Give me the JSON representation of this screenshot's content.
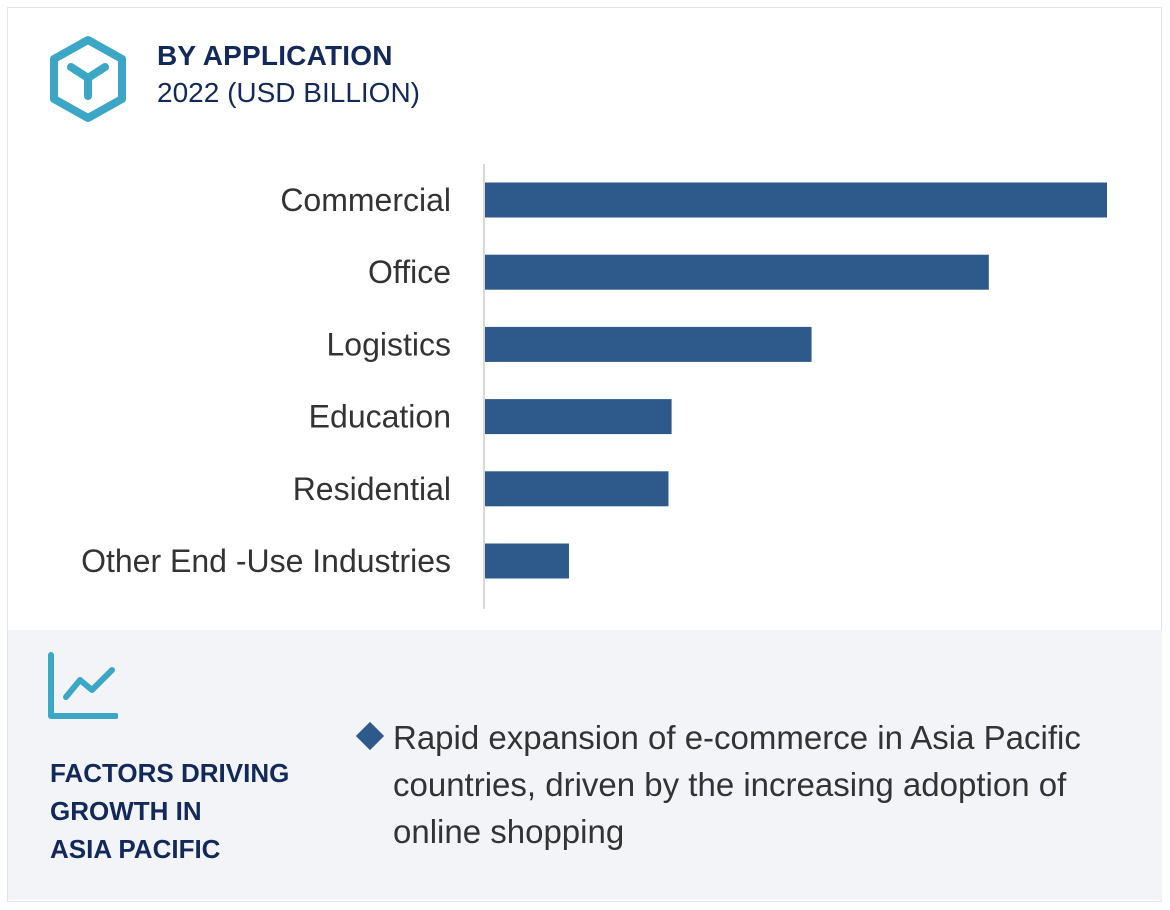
{
  "header": {
    "title": "BY APPLICATION",
    "subtitle": "2022 (USD BILLION)",
    "icon": "cube-icon",
    "icon_color": "#3ba6c6"
  },
  "chart_data": {
    "type": "bar",
    "orientation": "horizontal",
    "categories": [
      "Commercial",
      "Office",
      "Logistics",
      "Education",
      "Residential",
      "Other End -Use Industries"
    ],
    "values": [
      100,
      81,
      52.5,
      30,
      29.5,
      13.5
    ],
    "xlim": [
      0,
      100
    ],
    "title": "",
    "xlabel": "",
    "ylabel": "",
    "grid": false,
    "bar_color": "#2d5a8b"
  },
  "factors": {
    "icon": "trend-line-icon",
    "icon_color": "#3ba6c6",
    "heading_lines": [
      "FACTORS DRIVING",
      "GROWTH IN",
      "ASIA PACIFIC"
    ],
    "items": [
      "Rapid expansion of e-commerce in Asia Pacific countries, driven by the increasing adoption of online shopping"
    ],
    "bullet_color": "#2d5a8b"
  },
  "colors": {
    "heading": "#13295a",
    "panel_background": "#f3f4f8"
  }
}
